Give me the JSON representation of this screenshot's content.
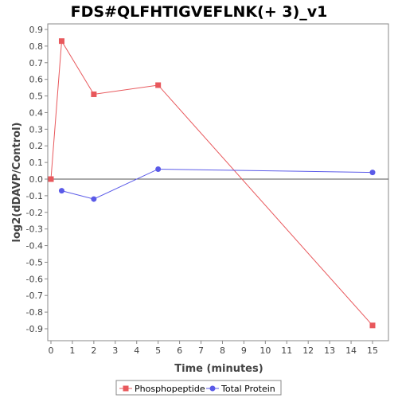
{
  "chart_data": {
    "type": "line",
    "title": "FDS#QLFHTIGVEFLNK(+ 3)_v1",
    "xlabel": "Time (minutes)",
    "ylabel": "log2(dDAVP/Control)",
    "xlim": [
      0,
      16
    ],
    "ylim": [
      -0.97,
      0.92
    ],
    "x_ticks": [
      0,
      1,
      2,
      3,
      4,
      5,
      6,
      7,
      8,
      9,
      10,
      11,
      12,
      13,
      14,
      15
    ],
    "y_ticks": [
      0.9,
      0.8,
      0.7,
      0.6,
      0.5,
      0.4,
      0.3,
      0.2,
      0.1,
      0.0,
      -0.1,
      -0.2,
      -0.3,
      -0.4,
      -0.5,
      -0.6,
      -0.7,
      -0.8,
      -0.9
    ],
    "y_tick_labels": [
      "0.9",
      "0.8",
      "0.7",
      "0.6",
      "0.5",
      "0.4",
      "0.3",
      "0.2",
      "0.1",
      "0.0",
      "-0.1",
      "-0.2",
      "-0.3",
      "-0.4",
      "-0.5",
      "-0.6",
      "-0.7",
      "-0.8",
      "-0.9"
    ],
    "grid": false,
    "zero_line": true,
    "legend_position": "bottom",
    "series": [
      {
        "name": "Phosphopeptide",
        "marker": "square",
        "color": "#e8585c",
        "x": [
          0,
          0.5,
          2,
          5,
          15
        ],
        "y": [
          0.0,
          0.83,
          0.51,
          0.565,
          -0.88
        ]
      },
      {
        "name": "Total Protein",
        "marker": "circle",
        "color": "#5a5ae8",
        "x": [
          0.5,
          2,
          5,
          15
        ],
        "y": [
          -0.07,
          -0.12,
          0.06,
          0.04
        ]
      }
    ]
  }
}
